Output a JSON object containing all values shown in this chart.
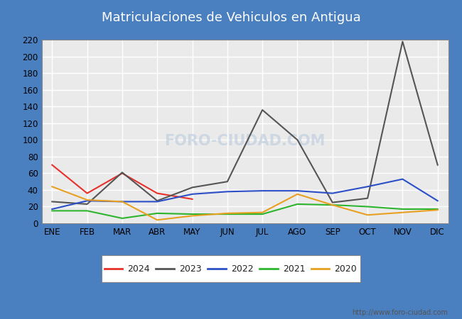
{
  "title": "Matriculaciones de Vehiculos en Antigua",
  "header_bg": "#5b96d2",
  "border_color": "#4a7fc0",
  "months": [
    "ENE",
    "FEB",
    "MAR",
    "ABR",
    "MAY",
    "JUN",
    "JUL",
    "AGO",
    "SEP",
    "OCT",
    "NOV",
    "DIC"
  ],
  "series": [
    {
      "year": "2024",
      "values": [
        70,
        36,
        60,
        36,
        29,
        null,
        null,
        null,
        null,
        null,
        null,
        null
      ],
      "color": "#e8302a"
    },
    {
      "year": "2023",
      "values": [
        26,
        23,
        61,
        27,
        43,
        50,
        136,
        100,
        25,
        30,
        218,
        70
      ],
      "color": "#555555"
    },
    {
      "year": "2022",
      "values": [
        17,
        27,
        26,
        26,
        35,
        38,
        39,
        39,
        36,
        44,
        53,
        27
      ],
      "color": "#2b4fc7"
    },
    {
      "year": "2021",
      "values": [
        15,
        15,
        6,
        12,
        11,
        11,
        11,
        23,
        22,
        20,
        17,
        17
      ],
      "color": "#2db52d"
    },
    {
      "year": "2020",
      "values": [
        44,
        28,
        26,
        4,
        9,
        12,
        13,
        35,
        22,
        10,
        13,
        16
      ],
      "color": "#e8a020"
    }
  ],
  "ylim": [
    0,
    220
  ],
  "yticks": [
    0,
    20,
    40,
    60,
    80,
    100,
    120,
    140,
    160,
    180,
    200,
    220
  ],
  "plot_bg": "#eaeaea",
  "grid_color": "#ffffff",
  "page_bg": "#ffffff",
  "outer_bg": "#4a7fc0",
  "watermark_text": "FORO-CIUDAD.COM",
  "watermark_color": "#c0cfe0",
  "footer_url": "http://www.foro-ciudad.com"
}
